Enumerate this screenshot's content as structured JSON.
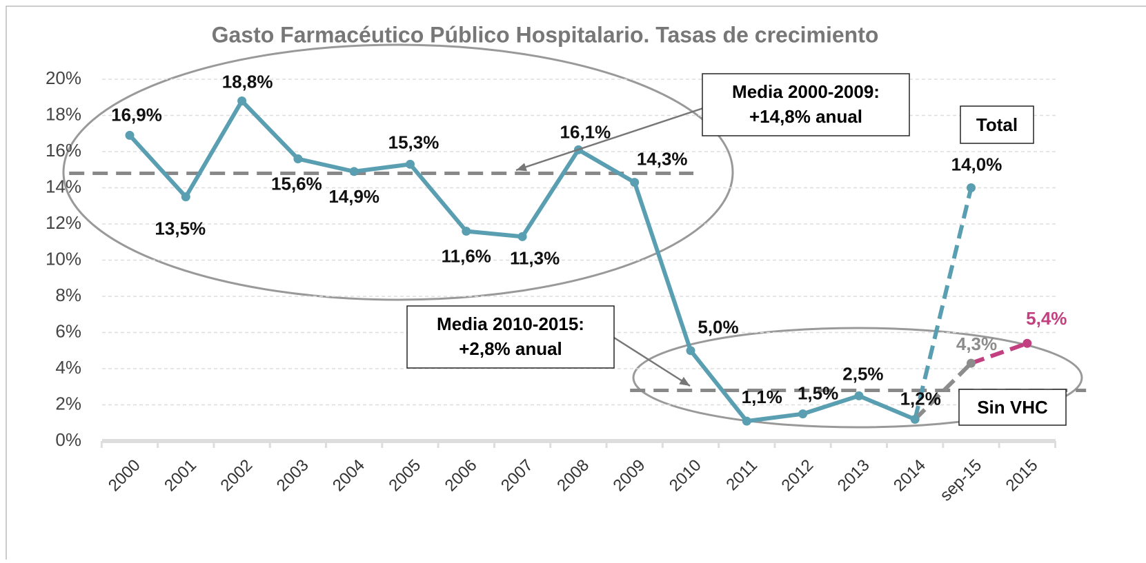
{
  "chart_data": {
    "type": "line",
    "title": "Gasto Farmacéutico Público Hospitalario. Tasas de crecimiento",
    "categories": [
      "2000",
      "2001",
      "2002",
      "2003",
      "2004",
      "2005",
      "2006",
      "2007",
      "2008",
      "2009",
      "2010",
      "2011",
      "2012",
      "2013",
      "2014",
      "sep-15",
      "2015"
    ],
    "series": [
      {
        "color": "#5a9fb1",
        "dashed": false,
        "values": [
          16.9,
          13.5,
          18.8,
          15.6,
          14.9,
          15.3,
          11.6,
          11.3,
          16.1,
          14.3,
          5.0,
          1.1,
          1.5,
          2.5,
          1.2,
          null,
          null
        ],
        "value_labels": [
          "16,9%",
          "13,5%",
          "18,8%",
          "15,6%",
          "14,9%",
          "15,3%",
          "11,6%",
          "11,3%",
          "16,1%",
          "14,3%",
          "5,0%",
          "1,1%",
          "1,5%",
          "2,5%",
          "1,2%",
          null,
          null
        ]
      },
      {
        "name": "Total",
        "color": "#5a9fb1",
        "dashed": true,
        "values": [
          null,
          null,
          null,
          null,
          null,
          null,
          null,
          null,
          null,
          null,
          null,
          null,
          null,
          null,
          1.2,
          14.0,
          null
        ],
        "value_labels": [
          null,
          null,
          null,
          null,
          null,
          null,
          null,
          null,
          null,
          null,
          null,
          null,
          null,
          null,
          null,
          "14,0%",
          null
        ]
      },
      {
        "name": "Sin VHC",
        "color": "#8c8c8c",
        "dashed": true,
        "values": [
          null,
          null,
          null,
          null,
          null,
          null,
          null,
          null,
          null,
          null,
          null,
          null,
          null,
          null,
          1.2,
          4.3,
          null
        ],
        "value_labels": [
          null,
          null,
          null,
          null,
          null,
          null,
          null,
          null,
          null,
          null,
          null,
          null,
          null,
          null,
          null,
          "4,3%",
          null
        ]
      },
      {
        "color": "#c2407f",
        "dashed": true,
        "values": [
          null,
          null,
          null,
          null,
          null,
          null,
          null,
          null,
          null,
          null,
          null,
          null,
          null,
          null,
          null,
          4.3,
          5.4
        ],
        "value_labels": [
          null,
          null,
          null,
          null,
          null,
          null,
          null,
          null,
          null,
          null,
          null,
          null,
          null,
          null,
          null,
          null,
          "5,4%"
        ]
      }
    ],
    "ylim": [
      0,
      20
    ],
    "yticks": [
      {
        "value": 0,
        "label": "0%"
      },
      {
        "value": 2,
        "label": "2%"
      },
      {
        "value": 4,
        "label": "4%"
      },
      {
        "value": 6,
        "label": "6%"
      },
      {
        "value": 8,
        "label": "8%"
      },
      {
        "value": 10,
        "label": "10%"
      },
      {
        "value": 12,
        "label": "12%"
      },
      {
        "value": 14,
        "label": "14%"
      },
      {
        "value": 16,
        "label": "16%"
      },
      {
        "value": 18,
        "label": "18%"
      },
      {
        "value": 20,
        "label": "20%"
      }
    ],
    "grid": true,
    "annotations": [
      {
        "text_lines": [
          "Media 2000-2009:",
          "+14,8% anual"
        ],
        "mean": 14.8,
        "from": "2000",
        "to": "2009"
      },
      {
        "text_lines": [
          "Media 2010-2015:",
          "+2,8% anual"
        ],
        "mean": 2.8,
        "from": "2010",
        "to": "2015"
      }
    ]
  }
}
